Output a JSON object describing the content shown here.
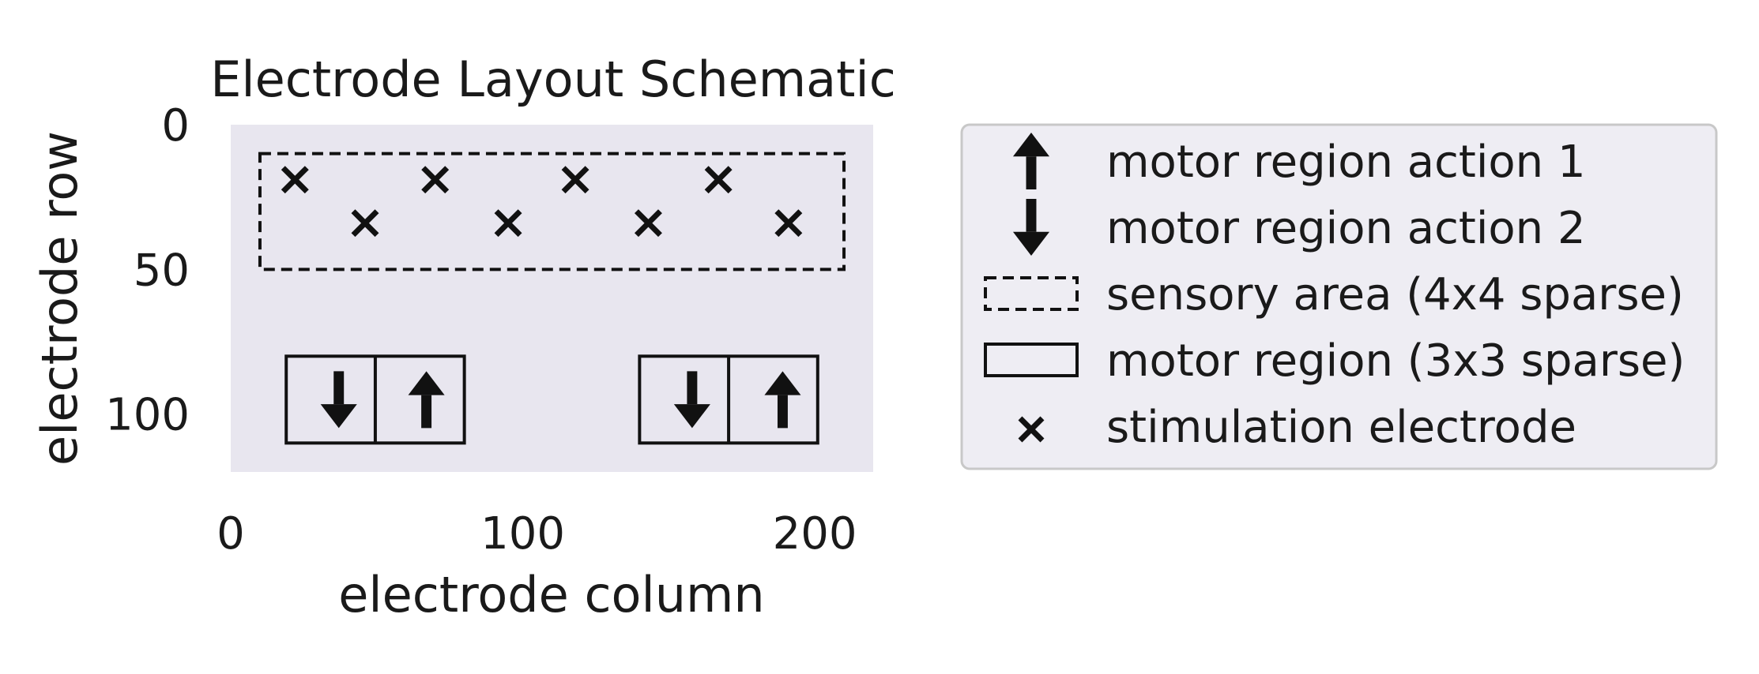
{
  "chart_data": {
    "type": "scatter",
    "title": "Electrode Layout Schematic",
    "xlabel": "electrode column",
    "ylabel": "electrode row",
    "xlim": [
      0,
      220
    ],
    "ylim": [
      120,
      0
    ],
    "y_inverted": true,
    "xticks": [
      0,
      100,
      200
    ],
    "yticks": [
      0,
      50,
      100
    ],
    "grid": false,
    "background_color": "#e8e6ef",
    "legend_placement": "outside-right",
    "sensory_area": {
      "label": "sensory area (4x4 sparse)",
      "x0": 10,
      "x1": 210,
      "y0": 10,
      "y1": 50,
      "style": "dashed"
    },
    "motor_regions": [
      {
        "label": "motor region (3x3 sparse)",
        "x0": 19,
        "x1": 80,
        "y0": 80,
        "y1": 110,
        "split_x": 49.5
      },
      {
        "label": "motor region (3x3 sparse)",
        "x0": 140,
        "x1": 201,
        "y0": 80,
        "y1": 110,
        "split_x": 170.5
      }
    ],
    "stimulation_electrodes": {
      "label": "stimulation electrode",
      "points": [
        [
          22,
          19
        ],
        [
          70,
          19
        ],
        [
          118,
          19
        ],
        [
          167,
          19
        ],
        [
          46,
          34
        ],
        [
          95,
          34
        ],
        [
          143,
          34
        ],
        [
          191,
          34
        ]
      ]
    },
    "motor_actions": [
      {
        "action": "motor region action 2",
        "direction": "down",
        "x": 37,
        "y": 95
      },
      {
        "action": "motor region action 1",
        "direction": "up",
        "x": 67,
        "y": 95
      },
      {
        "action": "motor region action 2",
        "direction": "down",
        "x": 158,
        "y": 95
      },
      {
        "action": "motor region action 1",
        "direction": "up",
        "x": 189,
        "y": 95
      }
    ],
    "legend": [
      {
        "symbol": "up-arrow",
        "label": "motor region action 1"
      },
      {
        "symbol": "down-arrow",
        "label": "motor region action 2"
      },
      {
        "symbol": "dashed-rect",
        "label": "sensory area (4x4 sparse)"
      },
      {
        "symbol": "solid-rect",
        "label": "motor region (3x3 sparse)"
      },
      {
        "symbol": "x-marker",
        "label": "stimulation electrode"
      }
    ]
  }
}
